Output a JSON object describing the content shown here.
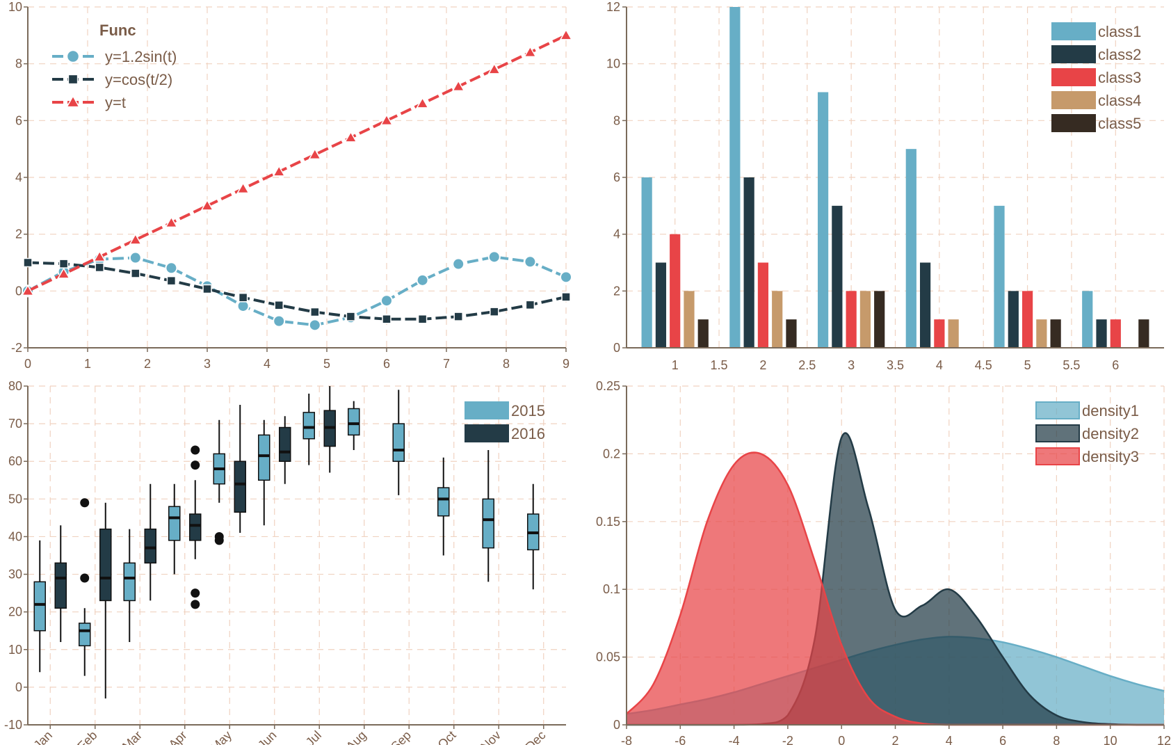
{
  "colors": {
    "c1": "#67aec6",
    "c2": "#233b46",
    "c3": "#e84447",
    "c4": "#c69a6b",
    "c5": "#362b22",
    "axis": "#7a6a5a",
    "text": "#7a5c48",
    "grid": "#f0d2c0"
  },
  "chart_data": [
    {
      "type": "line",
      "title": "",
      "legend_title": "Func",
      "legend_position": "top-left",
      "xlabel": "",
      "ylabel": "",
      "xlim": [
        0,
        9
      ],
      "ylim": [
        -2,
        10
      ],
      "xticks": [
        0,
        1,
        2,
        3,
        4,
        5,
        6,
        7,
        8,
        9
      ],
      "yticks": [
        -2,
        0,
        2,
        4,
        6,
        8,
        10
      ],
      "grid": true,
      "x": [
        0,
        0.6,
        1.2,
        1.8,
        2.4,
        3.0,
        3.6,
        4.2,
        4.8,
        5.4,
        6.0,
        6.6,
        7.2,
        7.8,
        8.4,
        9.0
      ],
      "series": [
        {
          "name": "y=1.2sin(t)",
          "marker": "circle",
          "color": "#67aec6",
          "values": [
            0,
            0.68,
            1.12,
            1.17,
            0.81,
            0.17,
            -0.53,
            -1.06,
            -1.2,
            -0.93,
            -0.34,
            0.38,
            0.95,
            1.2,
            1.03,
            0.49
          ]
        },
        {
          "name": "y=cos(t/2)",
          "marker": "square",
          "color": "#233b46",
          "values": [
            1.0,
            0.96,
            0.83,
            0.62,
            0.36,
            0.07,
            -0.23,
            -0.5,
            -0.74,
            -0.9,
            -0.99,
            -0.99,
            -0.9,
            -0.73,
            -0.49,
            -0.21
          ]
        },
        {
          "name": "y=t",
          "marker": "triangle",
          "color": "#e84447",
          "values": [
            0,
            0.6,
            1.2,
            1.8,
            2.4,
            3.0,
            3.6,
            4.2,
            4.8,
            5.4,
            6.0,
            6.6,
            7.2,
            7.8,
            8.4,
            9.0
          ]
        }
      ]
    },
    {
      "type": "bar",
      "title": "",
      "legend_position": "top-right",
      "xlabel": "",
      "ylabel": "",
      "ylim": [
        0,
        12
      ],
      "xlim": [
        0.45,
        6.55
      ],
      "xticks": [
        1,
        1.5,
        2,
        2.5,
        3,
        3.5,
        4,
        4.5,
        5,
        5.5,
        6
      ],
      "xtick_labels": [
        "1",
        "1.5",
        "2",
        "2.5",
        "3",
        "3.5",
        "4",
        "4.5",
        "5",
        "5.5",
        "6"
      ],
      "yticks": [
        0,
        2,
        4,
        6,
        8,
        10,
        12
      ],
      "grid": true,
      "categories": [
        1,
        2,
        3,
        4,
        5,
        6
      ],
      "series": [
        {
          "name": "class1",
          "color": "#67aec6",
          "values": [
            6,
            12,
            9,
            7,
            5,
            2
          ]
        },
        {
          "name": "class2",
          "color": "#233b46",
          "values": [
            3,
            6,
            5,
            3,
            2,
            1
          ]
        },
        {
          "name": "class3",
          "color": "#e84447",
          "values": [
            4,
            3,
            2,
            1,
            2,
            1
          ]
        },
        {
          "name": "class4",
          "color": "#c69a6b",
          "values": [
            2,
            2,
            2,
            1,
            1,
            0
          ]
        },
        {
          "name": "class5",
          "color": "#362b22",
          "values": [
            1,
            1,
            2,
            0,
            1,
            1
          ]
        }
      ]
    },
    {
      "type": "box",
      "title": "",
      "legend_position": "top-right",
      "xlabel": "",
      "ylabel": "",
      "ylim": [
        -10,
        80
      ],
      "yticks": [
        -10,
        0,
        10,
        20,
        30,
        40,
        50,
        60,
        70,
        80
      ],
      "grid": true,
      "categories": [
        "Jan",
        "Feb",
        "Mar",
        "Apr",
        "May",
        "Jun",
        "Jul",
        "Aug",
        "Sep",
        "Oct",
        "Nov",
        "Dec"
      ],
      "series": [
        {
          "name": "2015",
          "color": "#67aec6",
          "boxes": [
            {
              "cat": 0,
              "low": 4,
              "q1": 15,
              "median": 22,
              "q3": 28,
              "high": 39,
              "outliers": []
            },
            {
              "cat": 1,
              "low": 3,
              "q1": 11,
              "median": 15,
              "q3": 17,
              "high": 21,
              "outliers": [
                29,
                49
              ]
            },
            {
              "cat": 2,
              "low": 12,
              "q1": 23,
              "median": 29,
              "q3": 33,
              "high": 42,
              "outliers": []
            },
            {
              "cat": 3,
              "low": 30,
              "q1": 39,
              "median": 45,
              "q3": 48,
              "high": 54,
              "outliers": []
            },
            {
              "cat": 4,
              "low": 49,
              "q1": 54,
              "median": 58,
              "q3": 62,
              "high": 71,
              "outliers": [
                39,
                40
              ]
            },
            {
              "cat": 5,
              "low": 43,
              "q1": 55,
              "median": 61.5,
              "q3": 67,
              "high": 71,
              "outliers": []
            },
            {
              "cat": 6,
              "low": 59,
              "q1": 66,
              "median": 69,
              "q3": 73,
              "high": 78,
              "outliers": []
            },
            {
              "cat": 7,
              "low": 63,
              "q1": 67,
              "median": 70,
              "q3": 74,
              "high": 76,
              "outliers": []
            },
            {
              "cat": 8,
              "low": 51,
              "q1": 60,
              "median": 63,
              "q3": 70,
              "high": 79,
              "outliers": []
            },
            {
              "cat": 9,
              "low": 35,
              "q1": 45.5,
              "median": 50,
              "q3": 53,
              "high": 61,
              "outliers": []
            },
            {
              "cat": 10,
              "low": 28,
              "q1": 37,
              "median": 44.5,
              "q3": 50,
              "high": 63,
              "outliers": []
            },
            {
              "cat": 11,
              "low": 26,
              "q1": 36.5,
              "median": 41,
              "q3": 46,
              "high": 54,
              "outliers": []
            }
          ]
        },
        {
          "name": "2016",
          "color": "#233b46",
          "boxes": [
            {
              "cat": 0,
              "low": 12,
              "q1": 21,
              "median": 29,
              "q3": 33,
              "high": 43,
              "outliers": []
            },
            {
              "cat": 1,
              "low": -3,
              "q1": 23,
              "median": 29,
              "q3": 42,
              "high": 49,
              "outliers": []
            },
            {
              "cat": 2,
              "low": 23,
              "q1": 33,
              "median": 37,
              "q3": 42,
              "high": 54,
              "outliers": []
            },
            {
              "cat": 3,
              "low": 34,
              "q1": 39,
              "median": 43,
              "q3": 46,
              "high": 55,
              "outliers": [
                22,
                25,
                59,
                63
              ]
            },
            {
              "cat": 4,
              "low": 41,
              "q1": 46.5,
              "median": 54,
              "q3": 60,
              "high": 75,
              "outliers": []
            },
            {
              "cat": 5,
              "low": 54,
              "q1": 60,
              "median": 62.5,
              "q3": 69,
              "high": 72,
              "outliers": []
            },
            {
              "cat": 6,
              "low": 57,
              "q1": 64,
              "median": 69,
              "q3": 73.5,
              "high": 80,
              "outliers": []
            }
          ]
        }
      ]
    },
    {
      "type": "area",
      "title": "",
      "legend_position": "top-right",
      "xlabel": "",
      "ylabel": "",
      "xlim": [
        -8,
        12
      ],
      "ylim": [
        0,
        0.25
      ],
      "xticks": [
        -8,
        -6,
        -4,
        -2,
        0,
        2,
        4,
        6,
        8,
        10,
        12
      ],
      "yticks": [
        0,
        0.05,
        0.1,
        0.15,
        0.2,
        0.25
      ],
      "grid": true,
      "x": [
        -8,
        -7,
        -6,
        -5,
        -4,
        -3,
        -2,
        -1,
        0,
        1,
        2,
        3,
        4,
        5,
        6,
        7,
        8,
        9,
        10,
        11,
        12
      ],
      "series": [
        {
          "name": "density1",
          "color": "#67aec6",
          "values": [
            0.008,
            0.011,
            0.015,
            0.019,
            0.024,
            0.03,
            0.036,
            0.042,
            0.048,
            0.054,
            0.059,
            0.063,
            0.065,
            0.064,
            0.061,
            0.056,
            0.05,
            0.043,
            0.036,
            0.03,
            0.025
          ]
        },
        {
          "name": "density2",
          "color": "#233b46",
          "values": [
            0,
            0,
            0,
            0,
            0,
            0.0005,
            0.007,
            0.063,
            0.212,
            0.16,
            0.085,
            0.088,
            0.1,
            0.08,
            0.05,
            0.022,
            0.007,
            0.002,
            0.0005,
            0,
            0
          ]
        },
        {
          "name": "density3",
          "color": "#e84447",
          "values": [
            0.008,
            0.03,
            0.081,
            0.15,
            0.192,
            0.2,
            0.177,
            0.121,
            0.059,
            0.02,
            0.006,
            0.001,
            0,
            0,
            0,
            0,
            0,
            0,
            0,
            0,
            0
          ]
        }
      ]
    }
  ]
}
